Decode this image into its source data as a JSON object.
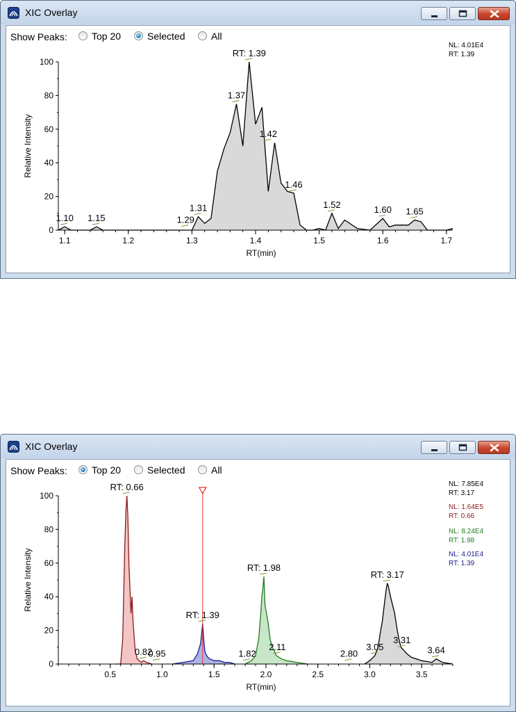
{
  "windows": [
    {
      "title": "XIC Overlay",
      "show_peaks_label": "Show Peaks:",
      "options": [
        {
          "label": "Top 20",
          "selected": false
        },
        {
          "label": "Selected",
          "selected": true
        },
        {
          "label": "All",
          "selected": false
        }
      ],
      "legend": [
        {
          "nl": "NL: 4.01E4",
          "rt": "RT: 1.39",
          "color": "#000000"
        }
      ]
    },
    {
      "title": "XIC Overlay",
      "show_peaks_label": "Show Peaks:",
      "options": [
        {
          "label": "Top 20",
          "selected": true
        },
        {
          "label": "Selected",
          "selected": false
        },
        {
          "label": "All",
          "selected": false
        }
      ],
      "legend": [
        {
          "nl": "NL: 7.85E4",
          "rt": "RT: 3.17",
          "color": "#000000"
        },
        {
          "nl": "NL: 1.64E5",
          "rt": "RT: 0.66",
          "color": "#8b1a1a"
        },
        {
          "nl": "NL: 8.24E4",
          "rt": "RT: 1.98",
          "color": "#1f7a1f"
        },
        {
          "nl": "NL: 4.01E4",
          "rt": "RT: 1.39",
          "color": "#1a1a8c"
        }
      ]
    }
  ],
  "chart_data": [
    {
      "type": "area",
      "xlabel": "RT(min)",
      "ylabel": "Relative Intensity",
      "xlim": [
        1.09,
        1.71
      ],
      "ylim": [
        0,
        100
      ],
      "xticks": [
        "1.1",
        "1.2",
        "1.3",
        "1.4",
        "1.5",
        "1.6",
        "1.7"
      ],
      "yticks": [
        "0",
        "20",
        "40",
        "60",
        "80",
        "100"
      ],
      "series": [
        {
          "color": "#000000",
          "fill": "#d9d9d9",
          "x": [
            1.09,
            1.1,
            1.11,
            1.12,
            1.14,
            1.15,
            1.16,
            1.27,
            1.29,
            1.3,
            1.31,
            1.32,
            1.33,
            1.34,
            1.35,
            1.36,
            1.37,
            1.38,
            1.39,
            1.4,
            1.41,
            1.42,
            1.43,
            1.44,
            1.45,
            1.46,
            1.47,
            1.48,
            1.49,
            1.5,
            1.51,
            1.52,
            1.53,
            1.54,
            1.56,
            1.58,
            1.6,
            1.61,
            1.62,
            1.64,
            1.65,
            1.66,
            1.67,
            1.7,
            1.71
          ],
          "y": [
            0,
            2,
            0,
            0,
            0,
            2,
            0,
            0,
            0,
            0,
            8,
            4,
            7,
            35,
            48,
            58,
            75,
            50,
            100,
            63,
            73,
            23,
            52,
            28,
            23,
            22,
            3,
            0,
            0,
            1,
            0,
            10,
            1,
            6,
            1,
            0,
            7,
            2,
            3,
            3,
            6,
            5,
            0,
            0,
            1
          ]
        }
      ],
      "peak_labels": [
        {
          "x": 1.1,
          "y": 2,
          "text": "1.10"
        },
        {
          "x": 1.15,
          "y": 2,
          "text": "1.15"
        },
        {
          "x": 1.29,
          "y": 1,
          "text": "1.29"
        },
        {
          "x": 1.31,
          "y": 8,
          "text": "1.31"
        },
        {
          "x": 1.37,
          "y": 75,
          "text": "1.37"
        },
        {
          "x": 1.39,
          "y": 100,
          "text": "RT: 1.39"
        },
        {
          "x": 1.42,
          "y": 52,
          "text": "1.42"
        },
        {
          "x": 1.46,
          "y": 22,
          "text": "1.46"
        },
        {
          "x": 1.52,
          "y": 10,
          "text": "1.52"
        },
        {
          "x": 1.6,
          "y": 7,
          "text": "1.60"
        },
        {
          "x": 1.65,
          "y": 6,
          "text": "1.65"
        }
      ]
    },
    {
      "type": "area",
      "xlabel": "RT(min)",
      "ylabel": "Relative Intensity",
      "xlim": [
        0.0,
        3.8
      ],
      "ylim": [
        0,
        100
      ],
      "xticks": [
        "0.5",
        "1.0",
        "1.5",
        "2.0",
        "2.5",
        "3.0",
        "3.5"
      ],
      "yticks": [
        "0",
        "20",
        "40",
        "60",
        "80",
        "100"
      ],
      "marker_x": 1.39,
      "series": [
        {
          "color": "#8b1a1a",
          "fill": "#f2c6c6",
          "x": [
            0.55,
            0.6,
            0.62,
            0.64,
            0.65,
            0.66,
            0.67,
            0.68,
            0.7,
            0.71,
            0.72,
            0.74,
            0.76,
            0.78,
            0.8,
            0.82,
            0.85,
            0.9
          ],
          "y": [
            0,
            0,
            15,
            70,
            90,
            100,
            88,
            60,
            30,
            40,
            25,
            8,
            3,
            2,
            1,
            2,
            1,
            0
          ]
        },
        {
          "color": "#1a1a8c",
          "fill": "#aeb4e6",
          "x": [
            1.1,
            1.2,
            1.3,
            1.34,
            1.36,
            1.37,
            1.38,
            1.39,
            1.4,
            1.41,
            1.42,
            1.44,
            1.46,
            1.5,
            1.55,
            1.6,
            1.65,
            1.7
          ],
          "y": [
            0,
            1,
            2,
            6,
            10,
            12,
            18,
            24,
            15,
            8,
            6,
            4,
            3,
            2,
            2,
            1,
            1,
            0
          ]
        },
        {
          "color": "#1f7a1f",
          "fill": "#c8e6c8",
          "x": [
            1.8,
            1.86,
            1.9,
            1.93,
            1.95,
            1.96,
            1.97,
            1.98,
            1.99,
            2.0,
            2.02,
            2.04,
            2.06,
            2.08,
            2.1,
            2.15,
            2.2,
            2.3,
            2.4
          ],
          "y": [
            0,
            2,
            5,
            15,
            30,
            40,
            45,
            52,
            35,
            32,
            25,
            15,
            10,
            8,
            5,
            3,
            2,
            1,
            0
          ]
        },
        {
          "color": "#000000",
          "fill": "#d9d9d9",
          "x": [
            2.95,
            3.0,
            3.05,
            3.08,
            3.1,
            3.12,
            3.14,
            3.16,
            3.17,
            3.18,
            3.2,
            3.22,
            3.24,
            3.26,
            3.28,
            3.3,
            3.33,
            3.36,
            3.4,
            3.5,
            3.6,
            3.64,
            3.7,
            3.8
          ],
          "y": [
            0,
            2,
            5,
            10,
            18,
            25,
            35,
            45,
            48,
            46,
            40,
            35,
            30,
            22,
            15,
            10,
            8,
            6,
            4,
            2,
            1,
            3,
            1,
            0
          ]
        }
      ],
      "peak_labels": [
        {
          "x": 0.66,
          "y": 100,
          "text": "RT: 0.66"
        },
        {
          "x": 0.82,
          "y": 2,
          "text": "0.82"
        },
        {
          "x": 0.95,
          "y": 1,
          "text": "0.95"
        },
        {
          "x": 1.39,
          "y": 24,
          "text": "RT: 1.39"
        },
        {
          "x": 1.82,
          "y": 1,
          "text": "1.82"
        },
        {
          "x": 1.98,
          "y": 52,
          "text": "RT: 1.98"
        },
        {
          "x": 2.11,
          "y": 5,
          "text": "2.11"
        },
        {
          "x": 2.8,
          "y": 1,
          "text": "2.80"
        },
        {
          "x": 3.05,
          "y": 5,
          "text": "3.05"
        },
        {
          "x": 3.17,
          "y": 48,
          "text": "RT: 3.17"
        },
        {
          "x": 3.31,
          "y": 9,
          "text": "3.31"
        },
        {
          "x": 3.64,
          "y": 3,
          "text": "3.64"
        }
      ]
    }
  ]
}
